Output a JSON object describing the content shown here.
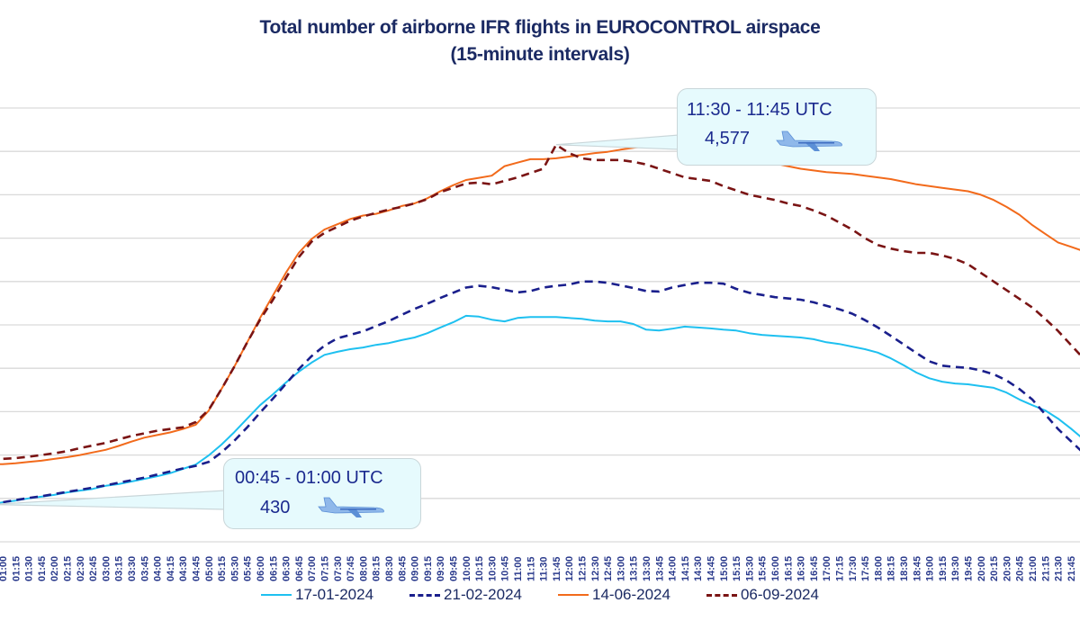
{
  "chart_data": {
    "type": "line",
    "title": "Total number of airborne IFR flights in EUROCONTROL airspace",
    "subtitle": "(15-minute intervals)",
    "xlabel": "",
    "ylabel": "",
    "ylim": [
      0,
      5000
    ],
    "y_gridlines": [
      500,
      1000,
      1500,
      2000,
      2500,
      3000,
      3500,
      4000,
      4500,
      5000
    ],
    "grid": true,
    "legend_position": "bottom",
    "x_start": "00:45",
    "x_tick_labels": [
      "01:00",
      "01:15",
      "01:30",
      "01:45",
      "02:00",
      "02:15",
      "02:30",
      "02:45",
      "03:00",
      "03:15",
      "03:30",
      "03:45",
      "04:00",
      "04:15",
      "04:30",
      "04:45",
      "05:00",
      "05:15",
      "05:30",
      "05:45",
      "06:00",
      "06:15",
      "06:30",
      "06:45",
      "07:00",
      "07:15",
      "07:30",
      "07:45",
      "08:00",
      "08:15",
      "08:30",
      "08:45",
      "09:00",
      "09:15",
      "09:30",
      "09:45",
      "10:00",
      "10:15",
      "10:30",
      "10:45",
      "11:00",
      "11:15",
      "11:30",
      "11:45",
      "12:00",
      "12:15",
      "12:30",
      "12:45",
      "13:00",
      "13:15",
      "13:30",
      "13:45",
      "14:00",
      "14:15",
      "14:30",
      "14:45",
      "15:00",
      "15:15",
      "15:30",
      "15:45",
      "16:00",
      "16:15",
      "16:30",
      "16:45",
      "17:00",
      "17:15",
      "17:30",
      "17:45",
      "18:00",
      "18:15",
      "18:30",
      "18:45",
      "19:00",
      "19:15",
      "19:30",
      "19:45",
      "20:00",
      "20:15",
      "20:30",
      "20:45",
      "21:00",
      "21:15",
      "21:30",
      "21:45"
    ],
    "series": [
      {
        "name": "17-01-2024",
        "color": "#1ec0f0",
        "dash": "solid",
        "values": [
          430,
          455,
          475,
          500,
          520,
          540,
          570,
          590,
          610,
          645,
          665,
          695,
          725,
          755,
          790,
          840,
          890,
          995,
          1120,
          1265,
          1420,
          1575,
          1700,
          1835,
          1960,
          2065,
          2155,
          2190,
          2220,
          2240,
          2270,
          2290,
          2325,
          2355,
          2405,
          2470,
          2530,
          2605,
          2595,
          2560,
          2540,
          2580,
          2590,
          2590,
          2590,
          2580,
          2570,
          2550,
          2540,
          2540,
          2510,
          2445,
          2435,
          2455,
          2480,
          2470,
          2460,
          2445,
          2435,
          2405,
          2385,
          2375,
          2365,
          2355,
          2335,
          2300,
          2280,
          2250,
          2220,
          2180,
          2115,
          2035,
          1950,
          1885,
          1845,
          1825,
          1815,
          1795,
          1775,
          1720,
          1640,
          1575,
          1515,
          1420,
          1305,
          1180
        ]
      },
      {
        "name": "21-02-2024",
        "color": "#1a1f8c",
        "dash": "dashed",
        "values": [
          430,
          455,
          480,
          505,
          525,
          550,
          575,
          600,
          625,
          650,
          680,
          710,
          740,
          775,
          810,
          845,
          875,
          920,
          1030,
          1165,
          1320,
          1490,
          1650,
          1820,
          1990,
          2140,
          2260,
          2345,
          2385,
          2425,
          2485,
          2545,
          2615,
          2685,
          2745,
          2810,
          2870,
          2930,
          2950,
          2935,
          2905,
          2875,
          2890,
          2930,
          2950,
          2965,
          3000,
          3000,
          2985,
          2955,
          2925,
          2890,
          2885,
          2930,
          2960,
          2985,
          2985,
          2975,
          2915,
          2870,
          2845,
          2820,
          2805,
          2790,
          2760,
          2720,
          2680,
          2630,
          2555,
          2470,
          2375,
          2275,
          2175,
          2080,
          2030,
          2015,
          2005,
          1975,
          1930,
          1860,
          1760,
          1640,
          1470,
          1300,
          1160,
          1020
        ]
      },
      {
        "name": "14-06-2024",
        "color": "#f26a1b",
        "dash": "solid",
        "values": [
          890,
          895,
          905,
          920,
          935,
          955,
          975,
          1000,
          1030,
          1060,
          1105,
          1155,
          1200,
          1230,
          1260,
          1300,
          1350,
          1510,
          1760,
          2020,
          2300,
          2580,
          2840,
          3100,
          3330,
          3490,
          3600,
          3660,
          3720,
          3760,
          3780,
          3820,
          3870,
          3900,
          3960,
          4040,
          4110,
          4170,
          4195,
          4220,
          4330,
          4370,
          4410,
          4410,
          4420,
          4440,
          4460,
          4480,
          4495,
          4520,
          4540,
          4560,
          4570,
          4575,
          4575,
          4570,
          4560,
          4550,
          4520,
          4470,
          4420,
          4360,
          4330,
          4300,
          4280,
          4260,
          4250,
          4240,
          4220,
          4200,
          4180,
          4150,
          4120,
          4100,
          4080,
          4060,
          4040,
          4000,
          3940,
          3860,
          3770,
          3650,
          3550,
          3450,
          3400,
          3350
        ]
      },
      {
        "name": "06-09-2024",
        "color": "#7a1414",
        "dash": "dashed",
        "values": [
          950,
          955,
          965,
          980,
          1000,
          1020,
          1045,
          1080,
          1110,
          1140,
          1180,
          1220,
          1250,
          1280,
          1300,
          1320,
          1380,
          1520,
          1760,
          2020,
          2300,
          2560,
          2790,
          3040,
          3280,
          3460,
          3560,
          3630,
          3700,
          3750,
          3790,
          3830,
          3860,
          3900,
          3950,
          4030,
          4080,
          4130,
          4140,
          4120,
          4160,
          4200,
          4250,
          4300,
          4577,
          4480,
          4420,
          4400,
          4400,
          4400,
          4380,
          4350,
          4300,
          4250,
          4200,
          4180,
          4160,
          4100,
          4050,
          4000,
          3970,
          3940,
          3900,
          3870,
          3820,
          3760,
          3680,
          3600,
          3500,
          3420,
          3380,
          3350,
          3330,
          3330,
          3300,
          3260,
          3200,
          3100,
          3000,
          2900,
          2800,
          2700,
          2570,
          2430,
          2270,
          2110
        ]
      }
    ],
    "annotations": [
      {
        "range": "11:30  -  11:45 UTC",
        "value": "4,577",
        "icon": "airplane-icon"
      },
      {
        "range": "00:45  -  01:00 UTC",
        "value": "430",
        "icon": "airplane-icon"
      }
    ]
  }
}
